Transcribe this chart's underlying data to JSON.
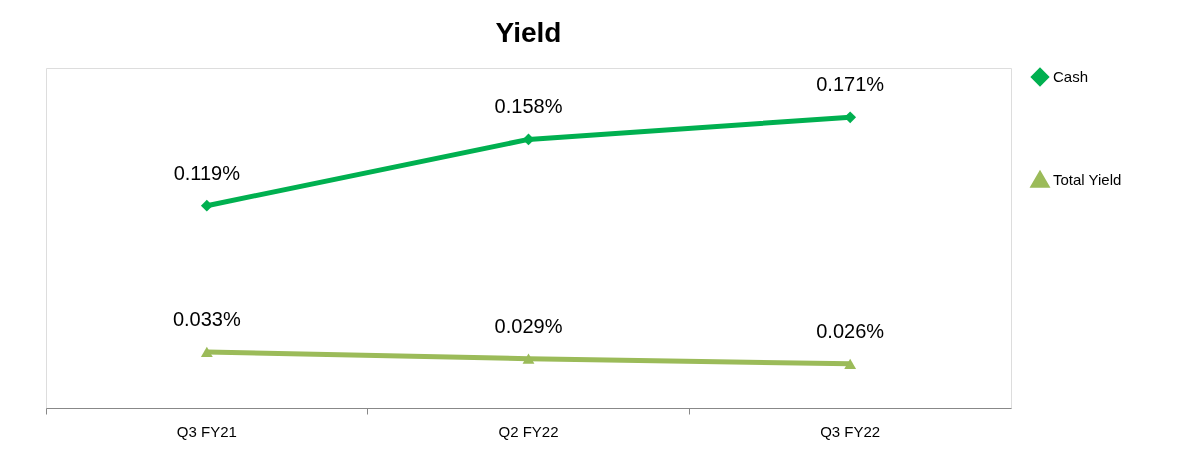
{
  "chart_data": {
    "type": "line",
    "title": "Yield",
    "categories": [
      "Q3 FY21",
      "Q2 FY22",
      "Q3 FY22"
    ],
    "series": [
      {
        "name": "Cash",
        "color": "#00b050",
        "marker": "diamond",
        "values": [
          0.119,
          0.158,
          0.171
        ],
        "value_labels": [
          "0.119%",
          "0.158%",
          "0.171%"
        ]
      },
      {
        "name": "Total Yield",
        "color": "#9bbb59",
        "marker": "triangle",
        "values": [
          0.033,
          0.029,
          0.026
        ],
        "value_labels": [
          "0.033%",
          "0.029%",
          "0.026%"
        ]
      }
    ],
    "ylim": [
      0,
      0.2
    ],
    "tick_labels": "x",
    "grid": false,
    "legend": "right",
    "line_style": "solid"
  }
}
